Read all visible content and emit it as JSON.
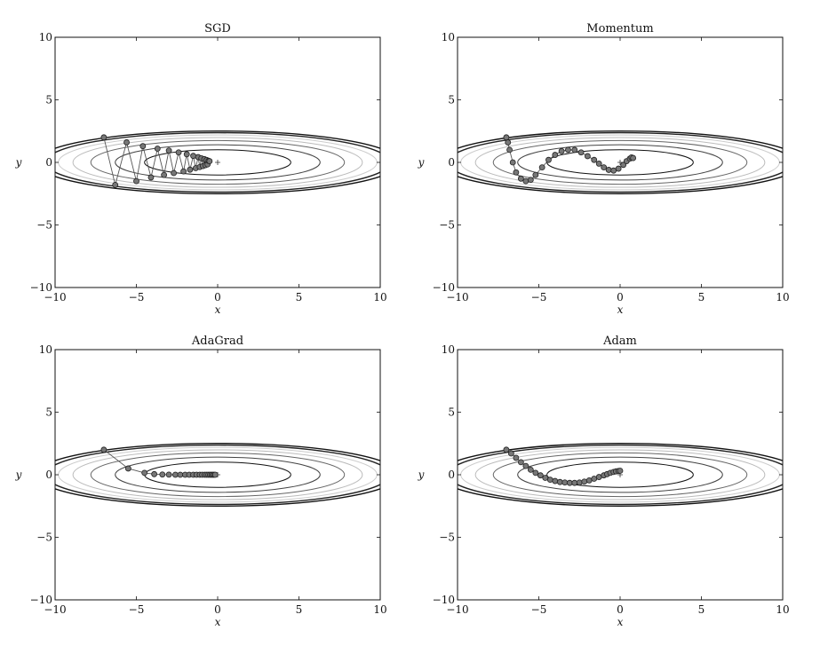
{
  "chart_data": [
    {
      "type": "scatter",
      "title": "SGD",
      "xlabel": "x",
      "ylabel": "y",
      "xlim": [
        -10,
        10
      ],
      "ylim": [
        -10,
        10
      ],
      "xticks": [
        -10,
        -5,
        0,
        5,
        10
      ],
      "yticks": [
        -10,
        -5,
        0,
        5,
        10
      ],
      "xtick_labels": [
        "−10",
        "−5",
        "0",
        "5",
        "10"
      ],
      "ytick_labels": [
        "−10",
        "−5",
        "0",
        "5",
        "10"
      ],
      "grid": false,
      "contour_x_semi_axes": [
        4.5,
        6.3,
        7.8,
        8.9,
        9.8,
        10.6,
        11.2
      ],
      "contour_colors": [
        "#111111",
        "#444444",
        "#666666",
        "#bbbbbb",
        "#cccccc",
        "#222222",
        "#111111"
      ],
      "minimum_marker": "+",
      "minimum": [
        0,
        0
      ],
      "series": [
        {
          "x": [
            -7.0,
            -6.3,
            -5.6,
            -5.0,
            -4.6,
            -4.1,
            -3.7,
            -3.3,
            -3.0,
            -2.7,
            -2.4,
            -2.1,
            -1.9,
            -1.7,
            -1.5,
            -1.35,
            -1.2,
            -1.1,
            -1.0,
            -0.9,
            -0.82,
            -0.75,
            -0.68,
            -0.62,
            -0.56,
            -0.5
          ],
          "y": [
            2.0,
            -1.8,
            1.6,
            -1.5,
            1.3,
            -1.2,
            1.1,
            -1.0,
            0.95,
            -0.85,
            0.8,
            -0.72,
            0.65,
            -0.58,
            0.52,
            -0.46,
            0.42,
            -0.37,
            0.33,
            -0.29,
            0.26,
            -0.22,
            0.19,
            -0.16,
            0.13,
            0.1
          ]
        }
      ]
    },
    {
      "type": "scatter",
      "title": "Momentum",
      "xlabel": "x",
      "ylabel": "y",
      "xlim": [
        -10,
        10
      ],
      "ylim": [
        -10,
        10
      ],
      "xticks": [
        -10,
        -5,
        0,
        5,
        10
      ],
      "yticks": [
        -10,
        -5,
        0,
        5,
        10
      ],
      "xtick_labels": [
        "−10",
        "−5",
        "0",
        "5",
        "10"
      ],
      "ytick_labels": [
        "−10",
        "−5",
        "0",
        "5",
        "10"
      ],
      "grid": false,
      "contour_x_semi_axes": [
        4.5,
        6.3,
        7.8,
        8.9,
        9.8,
        10.6,
        11.2
      ],
      "contour_colors": [
        "#111111",
        "#444444",
        "#666666",
        "#bbbbbb",
        "#cccccc",
        "#222222",
        "#111111"
      ],
      "minimum_marker": "+",
      "minimum": [
        0,
        0
      ],
      "series": [
        {
          "x": [
            -7.0,
            -6.9,
            -6.8,
            -6.6,
            -6.4,
            -6.1,
            -5.8,
            -5.5,
            -5.2,
            -4.8,
            -4.4,
            -4.0,
            -3.6,
            -3.2,
            -2.8,
            -2.4,
            -2.0,
            -1.6,
            -1.3,
            -1.0,
            -0.7,
            -0.4,
            -0.1,
            0.2,
            0.4,
            0.6,
            0.7,
            0.8
          ],
          "y": [
            2.0,
            1.6,
            1.0,
            0.0,
            -0.8,
            -1.3,
            -1.5,
            -1.4,
            -1.0,
            -0.4,
            0.2,
            0.6,
            0.9,
            1.0,
            1.0,
            0.8,
            0.5,
            0.2,
            -0.1,
            -0.4,
            -0.6,
            -0.65,
            -0.5,
            -0.2,
            0.1,
            0.3,
            0.4,
            0.35
          ]
        }
      ]
    },
    {
      "type": "scatter",
      "title": "AdaGrad",
      "xlabel": "x",
      "ylabel": "y",
      "xlim": [
        -10,
        10
      ],
      "ylim": [
        -10,
        10
      ],
      "xticks": [
        -10,
        -5,
        0,
        5,
        10
      ],
      "yticks": [
        -10,
        -5,
        0,
        5,
        10
      ],
      "xtick_labels": [
        "−10",
        "−5",
        "0",
        "5",
        "10"
      ],
      "ytick_labels": [
        "−10",
        "−5",
        "0",
        "5",
        "10"
      ],
      "grid": false,
      "contour_x_semi_axes": [
        4.5,
        6.3,
        7.8,
        8.9,
        9.8,
        10.6,
        11.2
      ],
      "contour_colors": [
        "#111111",
        "#444444",
        "#666666",
        "#bbbbbb",
        "#cccccc",
        "#222222",
        "#111111"
      ],
      "minimum_marker": "+",
      "minimum": [
        0,
        0
      ],
      "series": [
        {
          "x": [
            -7.0,
            -5.5,
            -4.5,
            -3.9,
            -3.4,
            -3.0,
            -2.6,
            -2.3,
            -2.0,
            -1.75,
            -1.5,
            -1.3,
            -1.1,
            -0.95,
            -0.8,
            -0.68,
            -0.57,
            -0.47,
            -0.38,
            -0.3,
            -0.22,
            -0.15
          ],
          "y": [
            2.0,
            0.5,
            0.15,
            0.05,
            0.02,
            0.01,
            0.0,
            0.0,
            0.0,
            0.0,
            0.0,
            0.0,
            0.0,
            0.0,
            0.0,
            0.0,
            0.0,
            0.0,
            0.0,
            0.0,
            0.0,
            0.0
          ]
        }
      ]
    },
    {
      "type": "scatter",
      "title": "Adam",
      "xlabel": "x",
      "ylabel": "y",
      "xlim": [
        -10,
        10
      ],
      "ylim": [
        -10,
        10
      ],
      "xticks": [
        -10,
        -5,
        0,
        5,
        10
      ],
      "yticks": [
        -10,
        -5,
        0,
        5,
        10
      ],
      "xtick_labels": [
        "−10",
        "−5",
        "0",
        "5",
        "10"
      ],
      "ytick_labels": [
        "−10",
        "−5",
        "0",
        "5",
        "10"
      ],
      "grid": false,
      "contour_x_semi_axes": [
        4.5,
        6.3,
        7.8,
        8.9,
        9.8,
        10.6,
        11.2
      ],
      "contour_colors": [
        "#111111",
        "#444444",
        "#666666",
        "#bbbbbb",
        "#cccccc",
        "#222222",
        "#111111"
      ],
      "minimum_marker": "+",
      "minimum": [
        0,
        0
      ],
      "series": [
        {
          "x": [
            -7.0,
            -6.7,
            -6.4,
            -6.1,
            -5.8,
            -5.5,
            -5.2,
            -4.9,
            -4.6,
            -4.3,
            -4.0,
            -3.7,
            -3.4,
            -3.1,
            -2.8,
            -2.5,
            -2.2,
            -1.9,
            -1.6,
            -1.3,
            -1.0,
            -0.8,
            -0.6,
            -0.4,
            -0.25,
            -0.1,
            0.0
          ],
          "y": [
            2.0,
            1.7,
            1.35,
            1.0,
            0.7,
            0.4,
            0.15,
            -0.05,
            -0.25,
            -0.4,
            -0.5,
            -0.58,
            -0.62,
            -0.65,
            -0.65,
            -0.62,
            -0.55,
            -0.45,
            -0.32,
            -0.18,
            -0.05,
            0.05,
            0.15,
            0.22,
            0.27,
            0.3,
            0.32
          ]
        }
      ]
    }
  ]
}
